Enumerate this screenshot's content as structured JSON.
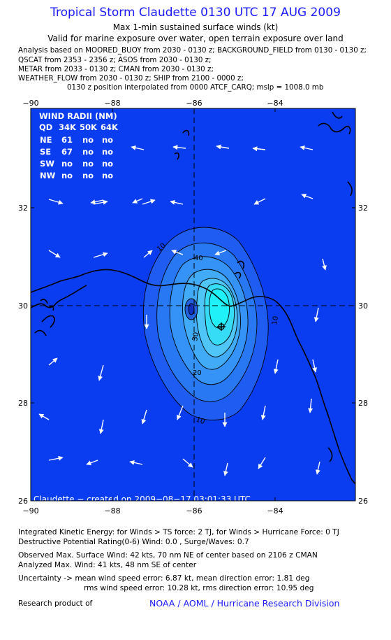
{
  "header": {
    "title": "Tropical Storm Claudette 0130 UTC 17 AUG 2009",
    "subtitle": "Max 1-min sustained surface winds (kt)",
    "validity": "Valid for marine exposure over water, open terrain exposure over land",
    "analysis_lines": [
      "Analysis based on  MOORED_BUOY from 2030 - 0130 z;  BACKGROUND_FIELD from 0130 - 0130 z;",
      "QSCAT from 2353 - 2356 z;  ASOS from 2030 - 0130 z;",
      "METAR from 2033 - 0130 z;  CMAN from 2030 - 0130 z;",
      "WEATHER_FLOW from 2030 - 0130 z;  SHIP from 2100 - 0000 z;"
    ],
    "position_note": "0130 z position interpolated from 0000 ATCF_CARQ; mslp = 1008.0 mb"
  },
  "map": {
    "lon_range": [
      -90,
      -82
    ],
    "lat_range": [
      26,
      33.9
    ],
    "lon_ticks": [
      "−90",
      "−88",
      "−86",
      "−84"
    ],
    "lat_ticks": [
      "26",
      "28",
      "30",
      "32"
    ],
    "crosshair_lon": -86,
    "crosshair_lat": 30,
    "center": {
      "lon": -85.4,
      "lat": 29.55
    },
    "contour_labels": [
      "10",
      "20",
      "30",
      "40",
      "10",
      "20",
      "10",
      "10"
    ],
    "credit": "Claudette  −  created on 2009−08−17 03:01:33 UTC",
    "colors": {
      "ocean": "#0a3df0",
      "land_outline": "#000000",
      "core": "#20f0f8",
      "label": "#ffffff"
    }
  },
  "wind_radii": {
    "title": "WIND RADII (NM)",
    "header": [
      "QD",
      "34K",
      "50K",
      "64K"
    ],
    "rows": [
      {
        "quadrant": "NE",
        "r34": "61",
        "r50": "no",
        "r64": "no"
      },
      {
        "quadrant": "SE",
        "r34": "67",
        "r50": "no",
        "r64": "no"
      },
      {
        "quadrant": "SW",
        "r34": "no",
        "r50": "no",
        "r64": "no"
      },
      {
        "quadrant": "NW",
        "r34": "no",
        "r50": "no",
        "r64": "no"
      }
    ]
  },
  "footer": {
    "ike": "Integrated Kinetic Energy:  for Winds > TS force: 2 TJ,  for Winds > Hurricane Force: 0 TJ",
    "dpr": "Destructive Potential Rating(0-6)   Wind: 0.0 , Surge/Waves: 0.7",
    "observed": "Observed Max. Surface Wind: 42 kts, 70 nm NE of center based on 2106 z CMAN",
    "analyzed": "Analyzed Max. Wind: 41 kts, 48 nm SE of center",
    "uncert1": "Uncertainty -> mean wind speed error: 6.87 kt,   mean direction error: 1.81 deg",
    "uncert2": "rms wind speed error: 10.28 kt,   rms direction error: 10.95 deg",
    "research": "Research product of",
    "org": "NOAA / AOML / Hurricane Research Division"
  }
}
